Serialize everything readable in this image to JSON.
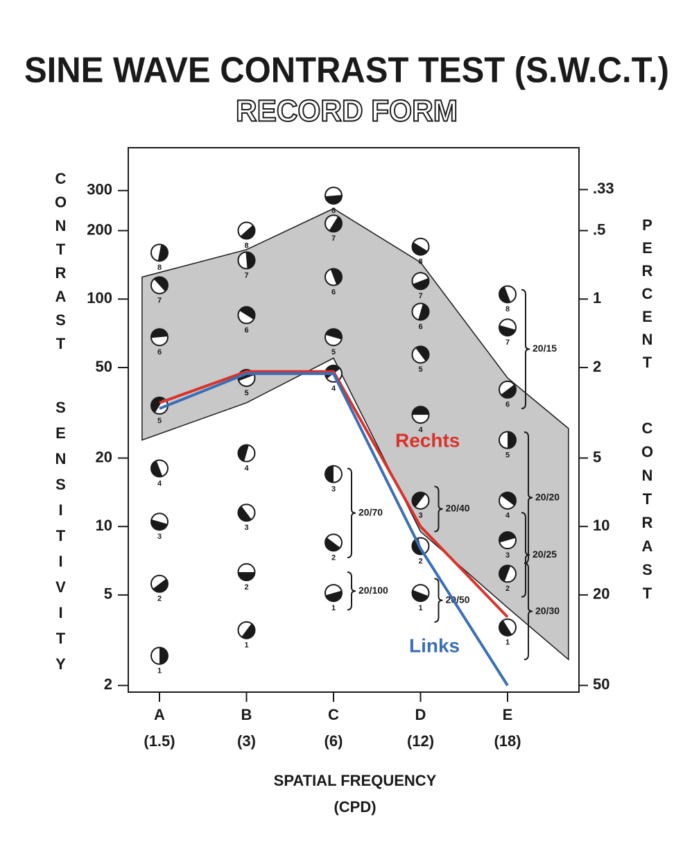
{
  "chart_data": {
    "type": "line",
    "title": "SINE WAVE CONTRAST TEST  (S.W.C.T.)",
    "subtitle": "RECORD FORM",
    "y_label": [
      "CONTRAST",
      "SENSITIVITY"
    ],
    "y2_label": [
      "PERCENT",
      "CONTRAST"
    ],
    "x_label": [
      "SPATIAL FREQUENCY",
      "(CPD)"
    ],
    "categories": [
      "A",
      "B",
      "C",
      "D",
      "E"
    ],
    "frequencies": [
      "(1.5)",
      "(3)",
      "(6)",
      "(12)",
      "(18)"
    ],
    "log_y": true,
    "ylim": [
      1.87,
      463
    ],
    "yticks": [
      2,
      5,
      10,
      20,
      50,
      100,
      200,
      300
    ],
    "y2lim": [
      53.5,
      0.216
    ],
    "y2ticks": [
      {
        "value": 0.33,
        "label": ".33"
      },
      {
        "value": 0.5,
        "label": ".5"
      },
      1,
      2,
      5,
      10,
      20,
      50
    ],
    "band": {
      "color": "#c8c8c8",
      "x": [
        -0.2,
        1,
        2,
        3,
        4,
        4.7
      ],
      "upper": [
        125,
        165,
        250,
        145,
        45,
        27
      ],
      "lower": [
        24,
        35,
        55,
        9.5,
        4.4,
        2.6
      ]
    },
    "patch_levels": [
      1,
      2,
      3,
      4,
      5,
      6,
      7,
      8
    ],
    "patch_values": [
      [
        2.7,
        5.6,
        10.5,
        18,
        34,
        68,
        115,
        160
      ],
      [
        3.5,
        6.3,
        11.5,
        21,
        45,
        85,
        148,
        200
      ],
      [
        5.1,
        8.5,
        17,
        47,
        68,
        125,
        215,
        285
      ],
      [
        5.1,
        8.2,
        13,
        31,
        57,
        88,
        120,
        170
      ],
      [
        3.6,
        6.2,
        8.7,
        13,
        24,
        40,
        75,
        105
      ]
    ],
    "acuity": [
      [],
      [],
      [
        {
          "label": "20/70",
          "range": [
            7.3,
            18
          ]
        },
        {
          "label": "20/100",
          "range": [
            4.3,
            6.3
          ]
        }
      ],
      [
        {
          "label": "20/40",
          "range": [
            9.5,
            15
          ]
        },
        {
          "label": "20/50",
          "range": [
            3.8,
            5.9
          ]
        }
      ],
      [
        {
          "label": "20/15",
          "range": [
            33,
            110
          ]
        },
        {
          "label": "20/20",
          "range": [
            6.9,
            26
          ]
        },
        {
          "label": "20/25",
          "range": [
            4.9,
            11.5
          ]
        },
        {
          "label": "20/30",
          "range": [
            2.6,
            6.9
          ]
        }
      ]
    ],
    "series": [
      {
        "name": "Rechts",
        "color": "#d9322b",
        "values": [
          35,
          48,
          48,
          10,
          4
        ]
      },
      {
        "name": "Links",
        "color": "#3a6fb7",
        "values": [
          33,
          47,
          47,
          8,
          2
        ]
      }
    ]
  }
}
